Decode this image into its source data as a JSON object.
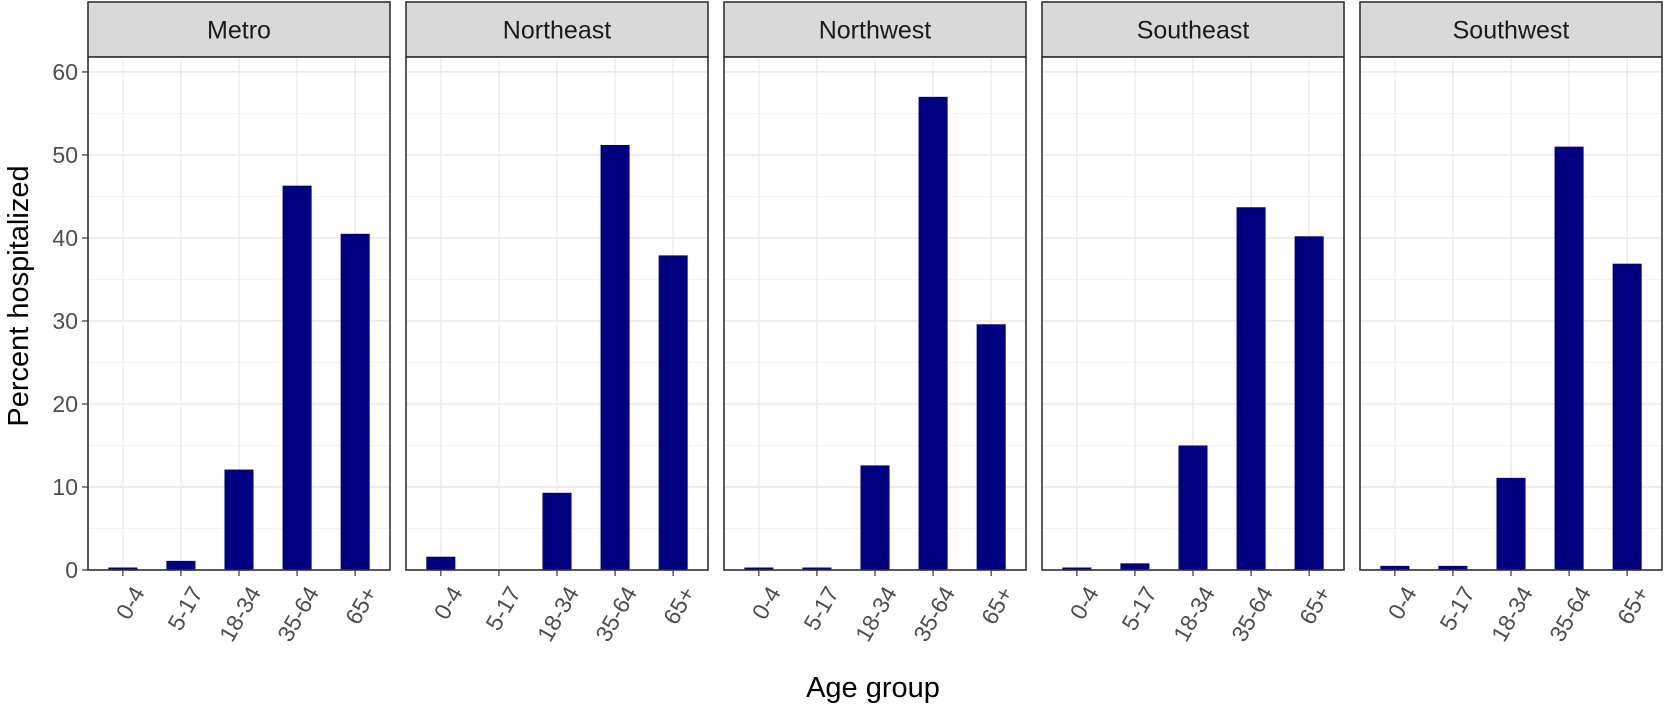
{
  "chart_data": {
    "type": "bar",
    "xlabel": "Age group",
    "ylabel": "Percent hospitalized",
    "ylim": [
      0,
      60
    ],
    "yticks": [
      0,
      10,
      20,
      30,
      40,
      50,
      60
    ],
    "grid": true,
    "categories": [
      "0-4",
      "5-17",
      "18-34",
      "35-64",
      "65+"
    ],
    "bar_color": "#000080",
    "panels": [
      {
        "name": "Metro",
        "values": [
          0.3,
          1.1,
          12.1,
          46.3,
          40.5
        ]
      },
      {
        "name": "Northeast",
        "values": [
          1.6,
          0.0,
          9.3,
          51.2,
          37.9
        ]
      },
      {
        "name": "Northwest",
        "values": [
          0.3,
          0.3,
          12.6,
          57.0,
          29.6
        ]
      },
      {
        "name": "Southeast",
        "values": [
          0.3,
          0.8,
          15.0,
          43.7,
          40.2
        ]
      },
      {
        "name": "Southwest",
        "values": [
          0.5,
          0.5,
          11.1,
          51.0,
          36.9
        ]
      }
    ]
  }
}
